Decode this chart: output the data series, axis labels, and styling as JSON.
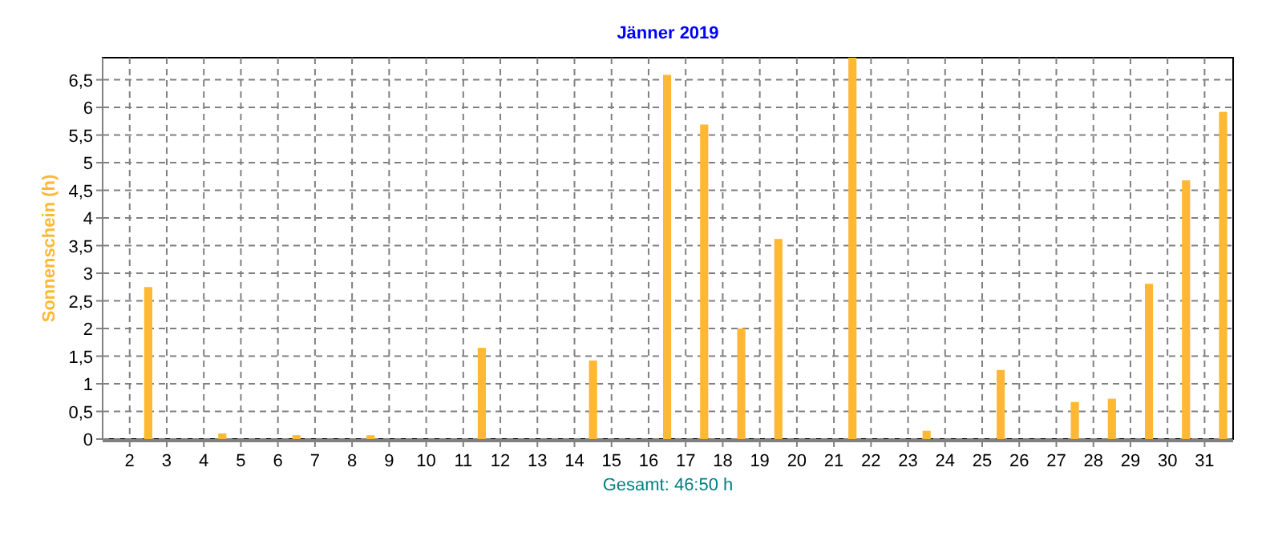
{
  "chart_data": {
    "type": "bar",
    "title": "Jänner 2019",
    "ylabel": "Sonnenschein (h)",
    "annotations": [
      "Gesamt: 46:50 h"
    ],
    "x": [
      1.5,
      2.5,
      3.5,
      4.5,
      5.5,
      6.5,
      7.5,
      8.5,
      9.5,
      10.5,
      11.5,
      12.5,
      13.5,
      14.5,
      15.5,
      16.5,
      17.5,
      18.5,
      19.5,
      20.5,
      21.5,
      22.5,
      23.5,
      24.5,
      25.5,
      26.5,
      27.5,
      28.5,
      29.5,
      30.5,
      31.5
    ],
    "values": [
      0,
      2.75,
      0,
      0.1,
      0,
      0.07,
      0,
      0.07,
      0,
      0,
      1.65,
      0,
      0,
      1.42,
      0,
      6.59,
      5.69,
      2.0,
      3.62,
      0,
      6.9,
      0,
      0.15,
      0,
      1.25,
      0,
      0.67,
      0.73,
      2.81,
      4.68,
      5.92
    ],
    "color": "#ffb833",
    "xlim": [
      1.27,
      31.77
    ],
    "xticks": [
      2,
      3,
      4,
      5,
      6,
      7,
      8,
      9,
      10,
      11,
      12,
      13,
      14,
      15,
      16,
      17,
      18,
      19,
      20,
      21,
      22,
      23,
      24,
      25,
      26,
      27,
      28,
      29,
      30,
      31
    ],
    "ylim": [
      0,
      6.9
    ],
    "yticks": [
      0,
      {
        "value": 0.5,
        "label": "0,5"
      },
      1,
      {
        "value": 1.5,
        "label": "1,5"
      },
      2,
      {
        "value": 2.5,
        "label": "2,5"
      },
      3,
      {
        "value": 3.5,
        "label": "3,5"
      },
      4,
      {
        "value": 4.5,
        "label": "4,5"
      },
      5,
      {
        "value": 5.5,
        "label": "5,5"
      },
      6,
      {
        "value": 6.5,
        "label": "6,5"
      }
    ],
    "grid": true
  }
}
